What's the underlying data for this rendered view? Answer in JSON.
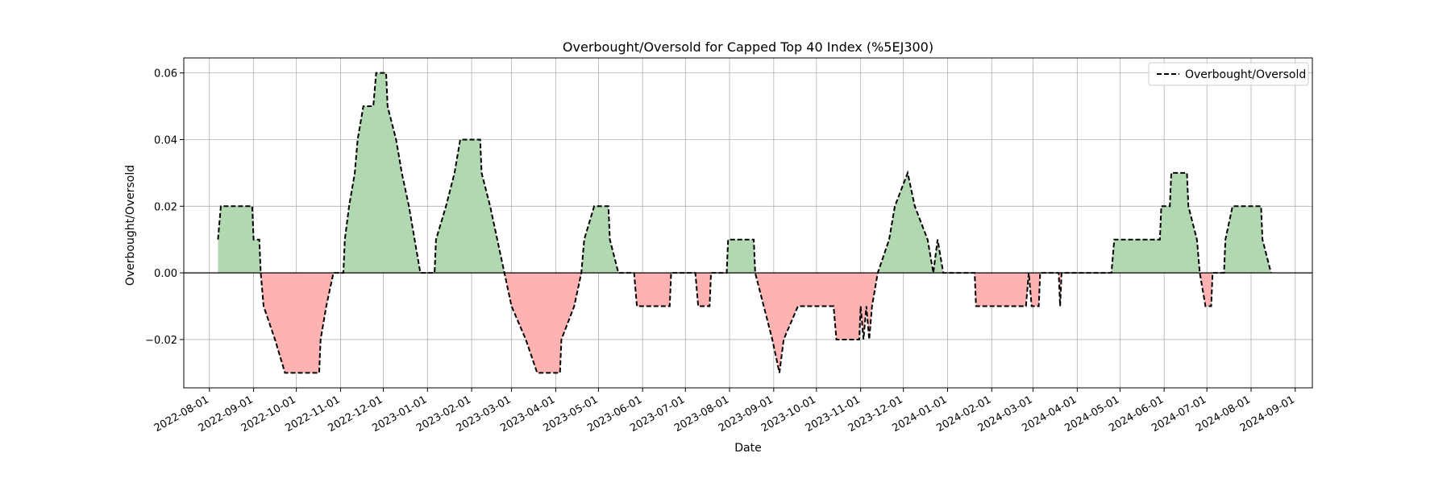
{
  "chart_data": {
    "type": "line",
    "title": "Overbought/Oversold for Capped Top 40 Index (%5EJ300)",
    "xlabel": "Date",
    "ylabel": "Overbought/Oversold",
    "legend": {
      "entries": [
        "Overbought/Oversold"
      ],
      "placement": "top-right"
    },
    "grid": true,
    "xlim": [
      "2022-07-14",
      "2024-09-13"
    ],
    "ylim": [
      -0.0345,
      0.0645
    ],
    "yticks": [
      -0.02,
      0.0,
      0.02,
      0.04,
      0.06
    ],
    "ytick_labels": [
      "−0.02",
      "0.00",
      "0.02",
      "0.04",
      "0.06"
    ],
    "xticks": [
      "2022-08-01",
      "2022-09-01",
      "2022-10-01",
      "2022-11-01",
      "2022-12-01",
      "2023-01-01",
      "2023-02-01",
      "2023-03-01",
      "2023-04-01",
      "2023-05-01",
      "2023-06-01",
      "2023-07-01",
      "2023-08-01",
      "2023-09-01",
      "2023-10-01",
      "2023-11-01",
      "2023-12-01",
      "2024-01-01",
      "2024-02-01",
      "2024-03-01",
      "2024-04-01",
      "2024-05-01",
      "2024-06-01",
      "2024-07-01",
      "2024-08-01",
      "2024-09-01"
    ],
    "colors": {
      "line": "#000000",
      "positive_fill": "#b2d8b2",
      "negative_fill": "#ffb2b2",
      "grid": "#b0b0b0",
      "zero_line": "#000000"
    },
    "series": [
      {
        "name": "Overbought/Oversold",
        "style": "dashed",
        "points": [
          [
            "2022-08-07",
            0.01
          ],
          [
            "2022-08-09",
            0.02
          ],
          [
            "2022-08-31",
            0.02
          ],
          [
            "2022-09-01",
            0.01
          ],
          [
            "2022-09-05",
            0.01
          ],
          [
            "2022-09-06",
            0.0
          ],
          [
            "2022-09-08",
            -0.01
          ],
          [
            "2022-09-16",
            -0.02
          ],
          [
            "2022-09-23",
            -0.03
          ],
          [
            "2022-10-17",
            -0.03
          ],
          [
            "2022-10-18",
            -0.02
          ],
          [
            "2022-10-22",
            -0.01
          ],
          [
            "2022-10-27",
            0.0
          ],
          [
            "2022-11-03",
            0.0
          ],
          [
            "2022-11-04",
            0.01
          ],
          [
            "2022-11-07",
            0.02
          ],
          [
            "2022-11-11",
            0.03
          ],
          [
            "2022-11-13",
            0.04
          ],
          [
            "2022-11-17",
            0.05
          ],
          [
            "2022-11-24",
            0.05
          ],
          [
            "2022-11-26",
            0.06
          ],
          [
            "2022-12-03",
            0.06
          ],
          [
            "2022-12-04",
            0.05
          ],
          [
            "2022-12-10",
            0.04
          ],
          [
            "2022-12-14",
            0.03
          ],
          [
            "2022-12-19",
            0.02
          ],
          [
            "2022-12-23",
            0.01
          ],
          [
            "2022-12-27",
            0.0
          ],
          [
            "2023-01-06",
            0.0
          ],
          [
            "2023-01-07",
            0.01
          ],
          [
            "2023-01-14",
            0.02
          ],
          [
            "2023-01-20",
            0.03
          ],
          [
            "2023-01-24",
            0.04
          ],
          [
            "2023-02-07",
            0.04
          ],
          [
            "2023-02-08",
            0.03
          ],
          [
            "2023-02-14",
            0.02
          ],
          [
            "2023-02-19",
            0.01
          ],
          [
            "2023-02-24",
            0.0
          ],
          [
            "2023-03-01",
            -0.01
          ],
          [
            "2023-03-11",
            -0.02
          ],
          [
            "2023-03-19",
            -0.03
          ],
          [
            "2023-04-04",
            -0.03
          ],
          [
            "2023-04-05",
            -0.02
          ],
          [
            "2023-04-14",
            -0.01
          ],
          [
            "2023-04-19",
            0.0
          ],
          [
            "2023-04-21",
            0.01
          ],
          [
            "2023-04-28",
            0.02
          ],
          [
            "2023-05-08",
            0.02
          ],
          [
            "2023-05-09",
            0.01
          ],
          [
            "2023-05-15",
            0.0
          ],
          [
            "2023-05-26",
            0.0
          ],
          [
            "2023-05-28",
            -0.01
          ],
          [
            "2023-06-20",
            -0.01
          ],
          [
            "2023-06-21",
            0.0
          ],
          [
            "2023-07-08",
            0.0
          ],
          [
            "2023-07-10",
            -0.01
          ],
          [
            "2023-07-18",
            -0.01
          ],
          [
            "2023-07-19",
            0.0
          ],
          [
            "2023-07-30",
            0.0
          ],
          [
            "2023-07-31",
            0.01
          ],
          [
            "2023-08-18",
            0.01
          ],
          [
            "2023-08-19",
            0.0
          ],
          [
            "2023-08-25",
            -0.01
          ],
          [
            "2023-08-31",
            -0.02
          ],
          [
            "2023-09-05",
            -0.03
          ],
          [
            "2023-09-08",
            -0.02
          ],
          [
            "2023-09-18",
            -0.01
          ],
          [
            "2023-10-13",
            -0.01
          ],
          [
            "2023-10-15",
            -0.02
          ],
          [
            "2023-10-31",
            -0.02
          ],
          [
            "2023-11-01",
            -0.01
          ],
          [
            "2023-11-03",
            -0.02
          ],
          [
            "2023-11-05",
            -0.01
          ],
          [
            "2023-11-07",
            -0.02
          ],
          [
            "2023-11-09",
            -0.01
          ],
          [
            "2023-11-13",
            0.0
          ],
          [
            "2023-11-21",
            0.01
          ],
          [
            "2023-11-25",
            0.02
          ],
          [
            "2023-12-04",
            0.03
          ],
          [
            "2023-12-09",
            0.02
          ],
          [
            "2023-12-18",
            0.01
          ],
          [
            "2023-12-22",
            0.0
          ],
          [
            "2023-12-25",
            0.01
          ],
          [
            "2023-12-29",
            0.0
          ],
          [
            "2024-01-20",
            0.0
          ],
          [
            "2024-01-21",
            -0.01
          ],
          [
            "2024-02-25",
            -0.01
          ],
          [
            "2024-02-27",
            0.0
          ],
          [
            "2024-02-29",
            -0.01
          ],
          [
            "2024-03-05",
            -0.01
          ],
          [
            "2024-03-06",
            0.0
          ],
          [
            "2024-03-19",
            0.0
          ],
          [
            "2024-03-20",
            -0.01
          ],
          [
            "2024-03-21",
            0.0
          ],
          [
            "2024-04-25",
            0.0
          ],
          [
            "2024-04-27",
            0.01
          ],
          [
            "2024-05-29",
            0.01
          ],
          [
            "2024-05-30",
            0.02
          ],
          [
            "2024-06-05",
            0.02
          ],
          [
            "2024-06-06",
            0.03
          ],
          [
            "2024-06-17",
            0.03
          ],
          [
            "2024-06-18",
            0.02
          ],
          [
            "2024-06-24",
            0.01
          ],
          [
            "2024-06-26",
            0.0
          ],
          [
            "2024-06-30",
            -0.01
          ],
          [
            "2024-07-04",
            -0.01
          ],
          [
            "2024-07-05",
            0.0
          ],
          [
            "2024-07-13",
            0.0
          ],
          [
            "2024-07-14",
            0.01
          ],
          [
            "2024-07-19",
            0.02
          ],
          [
            "2024-08-08",
            0.02
          ],
          [
            "2024-08-09",
            0.01
          ],
          [
            "2024-08-15",
            0.0
          ]
        ]
      }
    ]
  }
}
